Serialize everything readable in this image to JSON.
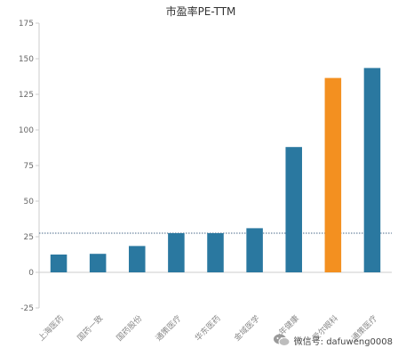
{
  "chart_data": {
    "type": "bar",
    "title": "市盈率PE-TTM",
    "categories": [
      "上海医药",
      "国药一致",
      "国药股份",
      "通策医疗",
      "华东医药",
      "金域医学",
      "一年健康",
      "爱尔眼科",
      "通策医疗"
    ],
    "values": [
      12.5,
      13,
      18.5,
      27.5,
      27.5,
      31,
      88,
      136.5,
      143.5
    ],
    "colors": [
      "#2a78a0",
      "#2a78a0",
      "#2a78a0",
      "#2a78a0",
      "#2a78a0",
      "#2a78a0",
      "#2a78a0",
      "#f39020",
      "#2a78a0"
    ],
    "reference_line": 27.5,
    "ylim": [
      -25,
      175
    ],
    "yticks": [
      "-25",
      "0",
      "25",
      "50",
      "75",
      "100",
      "125",
      "150",
      "175"
    ],
    "grid": false,
    "xlabel": "",
    "ylabel": ""
  },
  "watermark": {
    "icon": "wechat-icon",
    "text": "微信号: dafuweng0008"
  }
}
